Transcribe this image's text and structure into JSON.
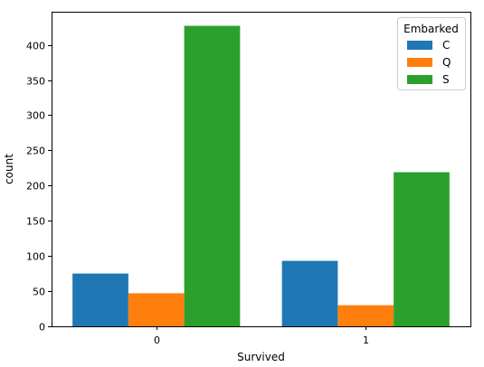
{
  "chart_data": {
    "type": "bar",
    "xlabel": "Survived",
    "ylabel": "count",
    "categories": [
      "0",
      "1"
    ],
    "ylim": [
      0,
      447
    ],
    "yticks": [
      0,
      50,
      100,
      150,
      200,
      250,
      300,
      350,
      400
    ],
    "grid": false,
    "legend": {
      "title": "Embarked",
      "placement": "top-right"
    },
    "series": [
      {
        "name": "C",
        "color": "#1f77b4",
        "values": [
          75,
          93
        ]
      },
      {
        "name": "Q",
        "color": "#ff7f0e",
        "values": [
          47,
          30
        ]
      },
      {
        "name": "S",
        "color": "#2ca02c",
        "values": [
          427,
          219
        ]
      }
    ]
  }
}
